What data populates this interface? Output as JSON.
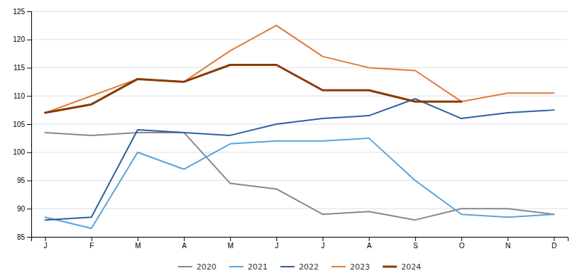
{
  "chart_data": {
    "type": "line",
    "categories": [
      "J",
      "F",
      "M",
      "A",
      "M",
      "J",
      "J",
      "A",
      "S",
      "O",
      "N",
      "D"
    ],
    "series": [
      {
        "name": "2020",
        "color": "#888888",
        "values": [
          103.5,
          103.0,
          103.5,
          103.5,
          94.5,
          93.5,
          89.0,
          89.5,
          88.0,
          90.0,
          90.0,
          89.0
        ]
      },
      {
        "name": "2021",
        "color": "#5ba3d9",
        "values": [
          88.5,
          86.5,
          100.0,
          97.0,
          101.5,
          102.0,
          102.0,
          102.5,
          95.0,
          89.0,
          88.5,
          89.0
        ]
      },
      {
        "name": "2022",
        "color": "#2e5fa3",
        "values": [
          88.0,
          88.5,
          104.0,
          103.5,
          103.0,
          105.0,
          106.0,
          106.5,
          109.5,
          106.0,
          107.0,
          107.5
        ]
      },
      {
        "name": "2023",
        "color": "#e07b39",
        "values": [
          107.0,
          110.0,
          113.0,
          112.5,
          118.0,
          122.5,
          117.0,
          115.0,
          114.5,
          109.0,
          110.5,
          110.5
        ]
      },
      {
        "name": "2024",
        "color": "#8b3a00",
        "values": [
          107.0,
          108.5,
          113.0,
          112.5,
          115.5,
          115.5,
          111.0,
          111.0,
          109.0,
          109.0,
          null,
          null
        ]
      }
    ],
    "ylim": [
      85,
      125
    ],
    "yticks": [
      85,
      90,
      95,
      100,
      105,
      110,
      115,
      120,
      125
    ],
    "grid": true,
    "legend": "bottom"
  }
}
